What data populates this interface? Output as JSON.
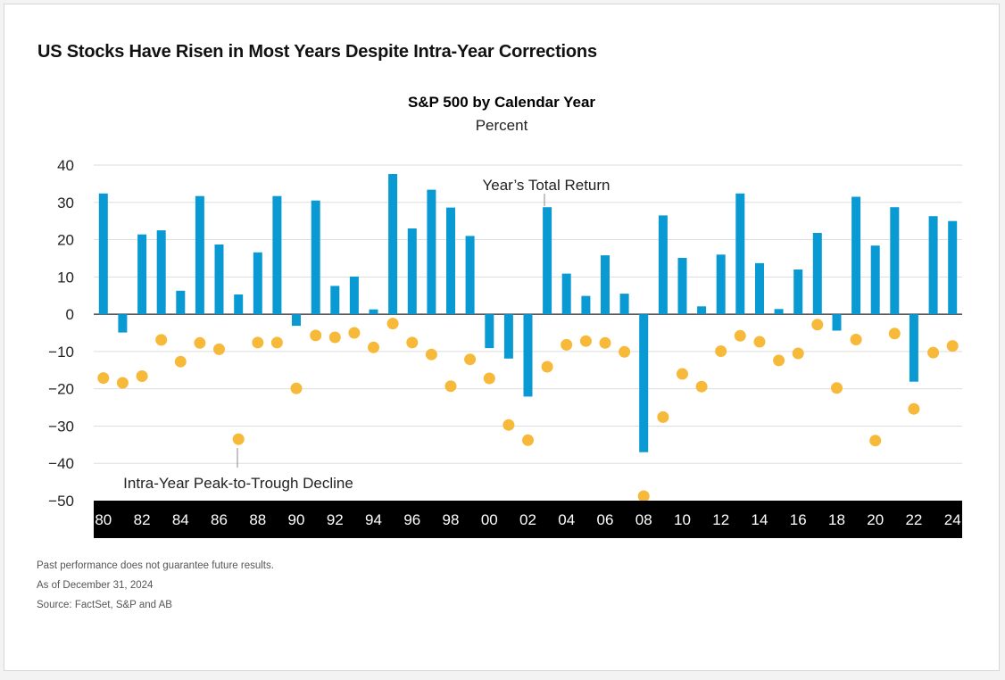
{
  "title": "US Stocks Have Risen in Most Years Despite Intra-Year Corrections",
  "notes": [
    "Past performance does not guarantee future results.",
    "As of December 31, 2024",
    "Source: FactSet, S&P and AB"
  ],
  "colors": {
    "bar": "#0a9ad3",
    "dot": "#f7b939",
    "axis_band": "#000000",
    "grid": "#dddddd"
  },
  "chart_data": {
    "type": "bar",
    "title": "S&P 500 by Calendar Year",
    "subtitle": "Percent",
    "ylim": [
      -50,
      40
    ],
    "yticks": [
      40,
      30,
      20,
      10,
      0,
      -10,
      -20,
      -30,
      -40,
      -50
    ],
    "ytick_labels": [
      "40",
      "30",
      "20",
      "10",
      "0",
      "−10",
      "−20",
      "−30",
      "−40",
      "−50"
    ],
    "grid": true,
    "categories": [
      1980,
      1981,
      1982,
      1983,
      1984,
      1985,
      1986,
      1987,
      1988,
      1989,
      1990,
      1991,
      1992,
      1993,
      1994,
      1995,
      1996,
      1997,
      1998,
      1999,
      2000,
      2001,
      2002,
      2003,
      2004,
      2005,
      2006,
      2007,
      2008,
      2009,
      2010,
      2011,
      2012,
      2013,
      2014,
      2015,
      2016,
      2017,
      2018,
      2019,
      2020,
      2021,
      2022,
      2023,
      2024
    ],
    "xtick_labels": [
      "80",
      "82",
      "84",
      "86",
      "88",
      "90",
      "92",
      "94",
      "96",
      "98",
      "00",
      "02",
      "04",
      "06",
      "08",
      "10",
      "12",
      "14",
      "16",
      "18",
      "20",
      "22",
      "24"
    ],
    "series": [
      {
        "name": "Year’s Total Return",
        "kind": "bar",
        "values": [
          32.4,
          -4.9,
          21.4,
          22.5,
          6.3,
          31.7,
          18.7,
          5.3,
          16.6,
          31.7,
          -3.1,
          30.5,
          7.6,
          10.1,
          1.3,
          37.6,
          23.0,
          33.4,
          28.6,
          21.0,
          -9.1,
          -11.9,
          -22.1,
          28.7,
          10.9,
          4.9,
          15.8,
          5.5,
          -37.0,
          26.5,
          15.1,
          2.1,
          16.0,
          32.4,
          13.7,
          1.4,
          12.0,
          21.8,
          -4.4,
          31.5,
          18.4,
          28.7,
          -18.1,
          26.3,
          25.0
        ]
      },
      {
        "name": "Intra-Year Peak-to-Trough Decline",
        "kind": "dot",
        "values": [
          -17.1,
          -18.4,
          -16.6,
          -6.9,
          -12.7,
          -7.7,
          -9.4,
          -33.5,
          -7.6,
          -7.6,
          -19.9,
          -5.7,
          -6.2,
          -5.0,
          -8.9,
          -2.5,
          -7.6,
          -10.8,
          -19.3,
          -12.1,
          -17.2,
          -29.7,
          -33.8,
          -14.1,
          -8.2,
          -7.2,
          -7.7,
          -10.1,
          -48.8,
          -27.6,
          -16.0,
          -19.4,
          -9.9,
          -5.8,
          -7.4,
          -12.4,
          -10.5,
          -2.8,
          -19.8,
          -6.8,
          -33.9,
          -5.2,
          -25.4,
          -10.3,
          -8.5
        ]
      }
    ],
    "annotations": [
      "Year’s Total Return",
      "Intra-Year Peak-to-Trough Decline"
    ]
  }
}
